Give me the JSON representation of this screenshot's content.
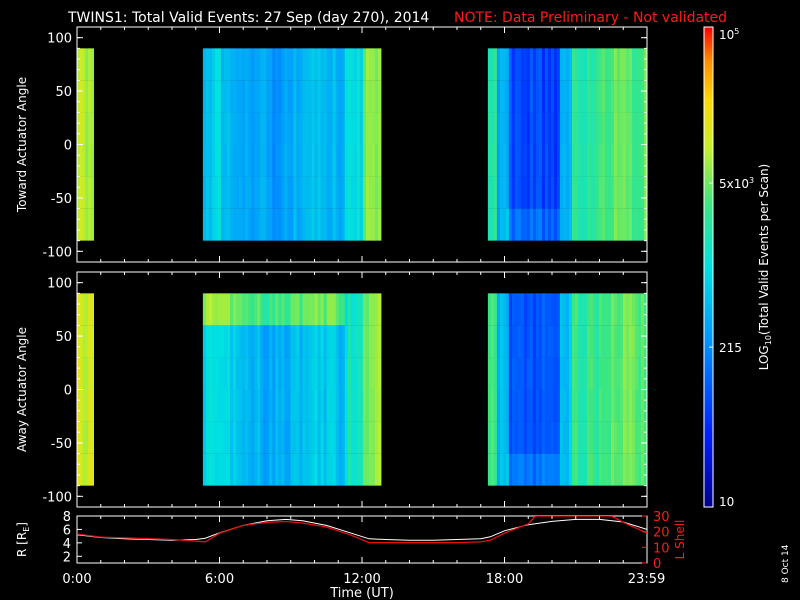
{
  "header": {
    "title": "TWINS1: Total Valid Events: 27 Sep (day 270), 2014",
    "note": "NOTE: Data Preliminary - Not validated"
  },
  "stamp": "8 Oct 14",
  "colors": {
    "background": "#000000",
    "note": "#ff1a1a",
    "r_line": "#ffffff",
    "lshell_line": "#e01010"
  },
  "colorbar": {
    "label": "LOG10(Total Valid Events per Scan)",
    "label_parts": [
      "LOG",
      "10",
      "(Total Valid Events per Scan)"
    ],
    "ticks": [
      {
        "value": 100000,
        "base": "10",
        "exp": "5"
      },
      {
        "value": 5000,
        "base": "5x10",
        "exp": "3"
      },
      {
        "value": 215,
        "base": "215",
        "exp": ""
      },
      {
        "value": 10,
        "base": "10",
        "exp": ""
      }
    ],
    "vmin": 10,
    "vmax": 100000,
    "scale": "log"
  },
  "chart_data": [
    {
      "type": "heatmap",
      "ylabel": "Toward Actuator Angle",
      "ylim": [
        -110,
        110
      ],
      "yticks": [
        -100,
        -50,
        0,
        50,
        100
      ],
      "xlim": [
        0,
        24
      ],
      "angle_range": [
        -90,
        90
      ],
      "segments": [
        {
          "t_start": 0.0,
          "t_end": 0.7,
          "typical": 9000
        },
        {
          "t_start": 5.3,
          "t_end": 12.8,
          "typical": 400
        },
        {
          "t_start": 17.3,
          "t_end": 24.0,
          "typical": 150
        }
      ]
    },
    {
      "type": "heatmap",
      "ylabel": "Away Actuator Angle",
      "ylim": [
        -110,
        110
      ],
      "yticks": [
        -100,
        -50,
        0,
        50,
        100
      ],
      "xlim": [
        0,
        24
      ],
      "angle_range": [
        -90,
        90
      ],
      "segments": [
        {
          "t_start": 0.0,
          "t_end": 0.7,
          "typical": 12000
        },
        {
          "t_start": 5.3,
          "t_end": 12.8,
          "typical": 500
        },
        {
          "t_start": 17.3,
          "t_end": 24.0,
          "typical": 180
        }
      ]
    },
    {
      "type": "line",
      "ylabel": "R [RE]",
      "ylabel_parts": [
        "R [R",
        "E",
        "]"
      ],
      "y2label": "L Shell",
      "ylim": [
        1,
        8
      ],
      "yticks": [
        2,
        4,
        6,
        8
      ],
      "y2lim": [
        0,
        30
      ],
      "y2ticks": [
        0,
        10,
        20,
        30
      ],
      "xlabel": "Time (UT)",
      "xlim": [
        0,
        24
      ],
      "xticks": [
        {
          "value": 0,
          "label": "0:00"
        },
        {
          "value": 6,
          "label": "6:00"
        },
        {
          "value": 12,
          "label": "12:00"
        },
        {
          "value": 18,
          "label": "18:00"
        },
        {
          "value": 23.98,
          "label": "23:59"
        }
      ],
      "series": [
        {
          "name": "R",
          "x": [
            0,
            1,
            2,
            3,
            4,
            5,
            5.4,
            6,
            7,
            8,
            8.8,
            9.5,
            10.5,
            11.5,
            12.3,
            13,
            14,
            15,
            16,
            17,
            17.4,
            18,
            19,
            20,
            21,
            22,
            23,
            24
          ],
          "y": [
            5.2,
            4.8,
            4.6,
            4.5,
            4.4,
            4.5,
            4.7,
            5.5,
            6.6,
            7.3,
            7.5,
            7.3,
            6.6,
            5.5,
            4.6,
            4.5,
            4.4,
            4.4,
            4.5,
            4.6,
            4.9,
            5.8,
            6.7,
            7.2,
            7.5,
            7.5,
            7.1,
            6.0
          ]
        },
        {
          "name": "L Shell",
          "axis": "right",
          "x": [
            0,
            1,
            2,
            3,
            4,
            5,
            5.4,
            6,
            7,
            8,
            8.8,
            9.5,
            10.5,
            11.5,
            12.3,
            13,
            14,
            15,
            16,
            17,
            17.4,
            18,
            19,
            19.3,
            22.5,
            23,
            24
          ],
          "y": [
            18.5,
            16.5,
            16.0,
            15.5,
            15.0,
            14.0,
            13.5,
            19.0,
            24.0,
            26.0,
            26.5,
            25.5,
            23.0,
            18.0,
            13.0,
            13.0,
            13.0,
            13.0,
            13.0,
            13.5,
            14.5,
            19.0,
            25.0,
            30.0,
            30.0,
            26.0,
            19.0
          ]
        }
      ]
    }
  ]
}
